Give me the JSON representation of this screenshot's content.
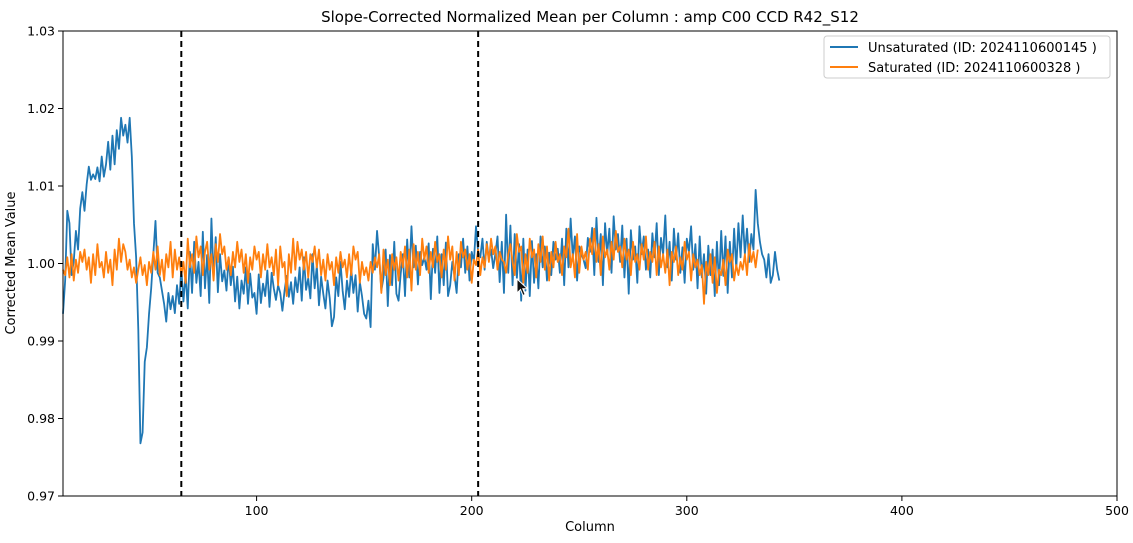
{
  "chart_data": {
    "type": "line",
    "title": "Slope-Corrected Normalized Mean per Column : amp C00 CCD R42_S12",
    "xlabel": "Column",
    "ylabel": "Corrected Mean Value",
    "xlim": [
      10,
      500
    ],
    "ylim": [
      0.97,
      1.03
    ],
    "xticks": [
      100,
      200,
      300,
      400,
      500
    ],
    "yticks": [
      0.97,
      0.98,
      0.99,
      1.0,
      1.01,
      1.02,
      1.03
    ],
    "legend_position": "top-right",
    "vlines": [
      65,
      203
    ],
    "vline_style": "dashed-black",
    "series": [
      {
        "name": "Unsaturated (ID: 2024110600145 )",
        "color": "#1f77b4",
        "x_start": 10,
        "x_step": 1,
        "values": [
          0.9935,
          0.9978,
          1.0068,
          1.0052,
          0.9985,
          1.0003,
          1.0042,
          1.0018,
          1.0071,
          1.0092,
          1.0068,
          1.0102,
          1.0125,
          1.0108,
          1.0115,
          1.0109,
          1.0124,
          1.0106,
          1.0138,
          1.0112,
          1.0128,
          1.0157,
          1.0121,
          1.0165,
          1.0128,
          1.0172,
          1.0148,
          1.0188,
          1.0165,
          1.0179,
          1.0156,
          1.0188,
          1.0138,
          1.0052,
          1.0008,
          0.9915,
          0.9768,
          0.9782,
          0.9873,
          0.9892,
          0.9935,
          0.9968,
          1.0012,
          1.0055,
          0.9988,
          0.9982,
          0.9965,
          0.9948,
          0.9925,
          0.9962,
          0.9941,
          0.9958,
          0.9936,
          0.9972,
          0.9948,
          0.9993,
          0.9951,
          0.9987,
          0.9942,
          1.0015,
          0.9962,
          1.0028,
          0.9975,
          1.0002,
          0.9958,
          1.0041,
          0.9968,
          1.0011,
          0.9949,
          1.0058,
          0.9982,
          1.0034,
          0.9963,
          1.0012,
          0.9977,
          0.9991,
          0.9965,
          1.0008,
          0.9972,
          0.9996,
          0.9951,
          0.9983,
          0.9942,
          0.9978,
          0.9961,
          0.9995,
          0.9948,
          0.9987,
          0.9956,
          0.9962,
          0.9935,
          0.9986,
          0.9949,
          0.9974,
          0.9958,
          0.9991,
          0.9944,
          0.9988,
          0.9968,
          0.9953,
          0.9972,
          0.9962,
          0.9939,
          0.9965,
          0.9984,
          0.9957,
          0.9976,
          0.9948,
          0.9982,
          0.9963,
          0.9995,
          0.9952,
          1.0008,
          0.9966,
          0.9981,
          0.9955,
          1.0012,
          0.9968,
          0.9997,
          0.9946,
          0.9983,
          0.9961,
          0.9942,
          0.9978,
          0.9955,
          0.9919,
          0.9931,
          0.9982,
          0.9958,
          1.0002,
          0.9965,
          0.9941,
          0.9978,
          0.9957,
          0.9993,
          0.9962,
          0.9985,
          0.9938,
          0.9976,
          0.9958,
          0.9935,
          0.9929,
          0.9952,
          0.9918,
          1.0025,
          0.9992,
          1.0042,
          1.0008,
          0.9965,
          0.9982,
          1.0018,
          0.9945,
          1.0011,
          0.9972,
          1.0028,
          0.9961,
          0.9952,
          0.9987,
          1.0012,
          0.9958,
          1.0031,
          0.9982,
          1.0048,
          0.9995,
          1.0023,
          0.9973,
          1.0015,
          0.9998,
          1.0008,
          0.9992,
          1.0026,
          0.9954,
          1.0019,
          0.9988,
          1.0035,
          0.9962,
          1.0012,
          0.9972,
          1.0027,
          0.9958,
          0.9972,
          1.0002,
          0.9985,
          0.9962,
          1.0012,
          0.9995,
          1.0032,
          0.9988,
          1.0022,
          0.9978,
          1.0015,
          1.0002,
          1.0048,
          1.0015,
          1.0008,
          1.0032,
          0.9992,
          1.0028,
          1.0005,
          1.0018,
          0.9994,
          1.0012,
          1.0035,
          0.9976,
          1.0028,
          0.9962,
          1.0063,
          0.9988,
          1.0049,
          0.9972,
          1.0038,
          0.9981,
          1.0025,
          0.9952,
          1.0032,
          0.9965,
          1.0018,
          0.9958,
          1.0029,
          0.9975,
          1.0012,
          0.9968,
          1.0035,
          0.9995,
          1.0022,
          0.9978,
          1.0014,
          0.9985,
          1.0028,
          1.0005,
          1.0019,
          0.9988,
          1.0032,
          0.9972,
          1.0045,
          0.9995,
          1.0058,
          1.0008,
          1.0035,
          0.9978,
          1.0022,
          1.0012,
          1.0005,
          0.9994,
          1.0033,
          1.0015,
          1.0046,
          0.9985,
          1.0059,
          1.0002,
          1.0038,
          0.9972,
          1.0052,
          1.0012,
          1.0045,
          0.9988,
          1.0061,
          1.0018,
          1.0038,
          1.0002,
          1.0049,
          0.9982,
          1.0032,
          0.9961,
          1.0043,
          1.0005,
          1.0022,
          0.9975,
          1.0048,
          1.0012,
          1.0035,
          0.9992,
          1.0018,
          0.9982,
          1.0039,
          1.0008,
          1.0052,
          0.9985,
          1.0033,
          1.0012,
          1.0062,
          0.9995,
          1.0028,
          0.9978,
          1.0045,
          1.0005,
          1.0039,
          0.9988,
          1.0021,
          0.9975,
          1.0032,
          1.0015,
          1.0048,
          0.9992,
          1.0025,
          0.9968,
          1.0035,
          0.9982,
          1.0012,
          0.9961,
          1.0023,
          0.9985,
          1.0018,
          0.9958,
          1.0028,
          0.9972,
          1.0042,
          0.9984,
          1.0035,
          0.9962,
          1.0028,
          0.9982,
          1.0045,
          0.9993,
          1.0052,
          1.0008,
          1.0062,
          1.0012,
          1.0045,
          1.0002,
          1.0038,
          1.0018,
          1.0095,
          1.0052,
          1.0028,
          1.0012,
          1.0005,
          0.9982,
          1.0012,
          0.9975,
          0.9985,
          1.0015,
          0.9992,
          0.9978
        ]
      },
      {
        "name": "Saturated (ID: 2024110600328 )",
        "color": "#ff7f0e",
        "x_start": 10,
        "x_step": 1,
        "values": [
          0.9992,
          0.9985,
          1.0008,
          0.9982,
          1.0012,
          0.9978,
          1.0005,
          0.9988,
          1.0015,
          1.0002,
          1.0018,
          0.9992,
          1.0008,
          0.9975,
          1.0012,
          0.9985,
          1.0025,
          0.9995,
          1.0002,
          0.9982,
          1.0015,
          0.9988,
          1.0005,
          0.9972,
          1.0018,
          0.9992,
          1.0032,
          1.0002,
          1.0025,
          1.0015,
          0.9992,
          1.0005,
          0.9982,
          0.9995,
          0.9975,
          0.9992,
          1.0008,
          0.9985,
          0.9998,
          0.9972,
          1.0002,
          0.9988,
          1.0015,
          0.9992,
          1.0022,
          0.9985,
          1.0005,
          0.9978,
          1.0012,
          0.9995,
          1.0028,
          0.9982,
          1.0018,
          0.9992,
          1.0008,
          0.9985,
          1.0002,
          0.9975,
          1.0032,
          0.9995,
          1.0012,
          0.9988,
          1.0035,
          1.0008,
          1.0022,
          0.9985,
          1.0015,
          1.0028,
          0.9992,
          1.0012,
          0.9978,
          1.0025,
          1.0002,
          1.0038,
          1.0012,
          1.0022,
          0.9992,
          1.0008,
          0.9985,
          1.0015,
          0.9995,
          1.0028,
          1.0002,
          1.0018,
          0.9988,
          1.0012,
          0.9975,
          1.0008,
          0.9992,
          1.0022,
          1.0005,
          1.0015,
          0.9982,
          1.0012,
          0.9992,
          1.0025,
          0.9995,
          1.0008,
          0.9985,
          1.0018,
          0.9972,
          1.0022,
          0.9995,
          1.0002,
          0.9958,
          1.0012,
          0.9988,
          1.0032,
          0.9992,
          1.0028,
          1.0005,
          1.0018,
          0.9992,
          1.0015,
          0.9982,
          1.0012,
          1.0002,
          1.0022,
          0.9995,
          1.0018,
          0.9985,
          1.0005,
          0.9978,
          1.0012,
          0.9992,
          1.0002,
          0.9972,
          1.0008,
          0.9988,
          1.0015,
          0.9995,
          1.0005,
          0.9982,
          1.0012,
          0.9985,
          1.0022,
          1.0005,
          1.0015,
          0.9975,
          1.0002,
          0.9985,
          0.9995,
          0.9978,
          1.0002,
          0.9988,
          1.0008,
          0.9995,
          1.0012,
          0.9962,
          1.0018,
          0.9985,
          1.0005,
          0.9972,
          1.0012,
          0.9992,
          1.0008,
          0.9978,
          1.0015,
          0.9995,
          1.0022,
          0.9982,
          1.0018,
          0.9965,
          1.0025,
          0.9992,
          1.0015,
          0.9985,
          1.0032,
          1.0005,
          1.0022,
          0.9988,
          1.0015,
          0.9995,
          1.0028,
          1.0002,
          1.0012,
          0.9982,
          1.0018,
          0.9992,
          1.0035,
          1.0005,
          1.0022,
          0.9978,
          1.0015,
          0.9985,
          1.0028,
          1.0008,
          1.0018,
          0.9992,
          1.0012,
          0.9975,
          1.0005,
          0.9998,
          1.0018,
          0.9985,
          1.0008,
          0.9995,
          1.0025,
          1.0002,
          1.0032,
          1.0012,
          1.0022,
          0.9992,
          1.0015,
          1.0005,
          1.0002,
          0.9988,
          1.0012,
          1.0025,
          1.0002,
          0.9985,
          1.0038,
          1.0015,
          1.0022,
          0.9975,
          1.0012,
          0.9988,
          1.0032,
          1.0008,
          1.0018,
          0.9982,
          1.0025,
          1.0002,
          1.0035,
          0.9992,
          1.0022,
          0.9978,
          1.0015,
          0.9995,
          1.0028,
          1.0002,
          1.0012,
          0.9985,
          1.0022,
          1.0008,
          1.0045,
          0.9995,
          1.0012,
          0.9982,
          1.0038,
          0.9988,
          1.0022,
          1.0005,
          1.0015,
          0.9992,
          1.0032,
          1.0012,
          1.0045,
          1.0002,
          1.0025,
          0.9985,
          1.0035,
          1.0008,
          1.0018,
          0.9992,
          1.0028,
          1.0005,
          1.0042,
          1.0015,
          1.0022,
          0.9995,
          1.0032,
          1.0005,
          1.0018,
          0.9985,
          1.0028,
          1.0002,
          1.0012,
          0.9992,
          1.0025,
          1.0005,
          1.0035,
          0.9992,
          1.0015,
          1.0002,
          1.0028,
          0.9985,
          1.0022,
          0.9995,
          1.0012,
          0.9988,
          1.0018,
          0.9972,
          1.0015,
          1.0002,
          1.0022,
          0.9985,
          1.0008,
          0.9992,
          1.0028,
          1.0005,
          1.0015,
          0.9978,
          1.0012,
          0.9995,
          1.0005,
          0.9985,
          0.9998,
          0.9948,
          1.0002,
          0.9985,
          1.0012,
          0.9975,
          1.0008,
          0.9962,
          0.9992,
          0.9985,
          1.0005,
          0.9972,
          1.0018,
          1.0002,
          1.0012,
          0.9978,
          0.9998,
          0.9985,
          1.0002,
          0.9992,
          1.0012,
          0.9985,
          1.0025,
          1.0002,
          1.0015,
          0.9995,
          1.0018
        ]
      }
    ]
  }
}
